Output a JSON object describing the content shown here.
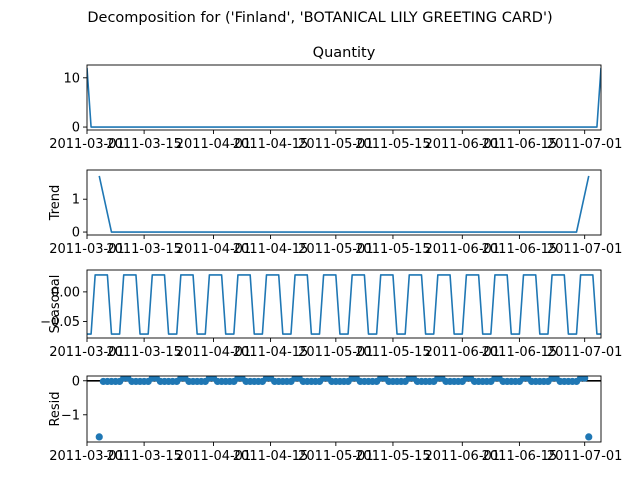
{
  "figure": {
    "suptitle": "Decomposition for ('Finland', 'BOTANICAL LILY GREETING CARD')"
  },
  "colors": {
    "series": "#1f77b4",
    "axis": "#000000"
  },
  "chart_data": [
    {
      "type": "line",
      "title": "Quantity",
      "ylabel": "",
      "ylim": [
        -0.6,
        12.6
      ],
      "yticks": [
        0,
        10
      ],
      "x_range": [
        "2011-03-01",
        "2011-07-05"
      ],
      "xticks": [
        "2011-03-01",
        "2011-03-15",
        "2011-04-01",
        "2011-04-15",
        "2011-05-01",
        "2011-05-15",
        "2011-06-01",
        "2011-06-15",
        "2011-07-01"
      ],
      "series": [
        {
          "points": [
            [
              "2011-03-01",
              12
            ],
            [
              "2011-03-02",
              0
            ],
            [
              "2011-07-04",
              0
            ],
            [
              "2011-07-05",
              12
            ]
          ]
        }
      ]
    },
    {
      "type": "line",
      "title": "",
      "ylabel": "Trend",
      "ylim": [
        -0.09,
        1.89
      ],
      "yticks": [
        0,
        1
      ],
      "x_range": [
        "2011-03-01",
        "2011-07-05"
      ],
      "xticks": [
        "2011-03-01",
        "2011-03-15",
        "2011-04-01",
        "2011-04-15",
        "2011-05-01",
        "2011-05-15",
        "2011-06-01",
        "2011-06-15",
        "2011-07-01"
      ],
      "series": [
        {
          "points": [
            [
              "2011-03-04",
              1.71
            ],
            [
              "2011-03-07",
              0
            ],
            [
              "2011-06-29",
              0
            ],
            [
              "2011-07-02",
              1.71
            ]
          ]
        }
      ]
    },
    {
      "type": "line",
      "title": "",
      "ylabel": "Seasonal",
      "ylim": [
        -0.078,
        0.037
      ],
      "yticks": [
        0.0,
        -0.05
      ],
      "ytick_labels": [
        "0.00",
        "−0.05"
      ],
      "x_range": [
        "2011-03-01",
        "2011-07-05"
      ],
      "xticks": [
        "2011-03-01",
        "2011-03-15",
        "2011-04-01",
        "2011-04-15",
        "2011-05-01",
        "2011-05-15",
        "2011-06-01",
        "2011-06-15",
        "2011-07-01"
      ],
      "period": 7,
      "high": 0.0286,
      "low": -0.0714,
      "series": [
        {
          "pattern": "weekly square wave"
        }
      ]
    },
    {
      "type": "scatter",
      "title": "",
      "ylabel": "Resid",
      "ylim": [
        -1.8,
        0.14
      ],
      "yticks": [
        0,
        -1
      ],
      "ytick_labels": [
        "0",
        "−1"
      ],
      "baseline": 0,
      "x_range": [
        "2011-03-01",
        "2011-07-05"
      ],
      "xticks": [
        "2011-03-01",
        "2011-03-15",
        "2011-04-01",
        "2011-04-15",
        "2011-05-01",
        "2011-05-15",
        "2011-06-01",
        "2011-06-15",
        "2011-07-01"
      ],
      "outliers": [
        [
          "2011-03-04",
          -1.65
        ],
        [
          "2011-07-02",
          -1.65
        ]
      ],
      "high": 0.08,
      "low": -0.02,
      "series": [
        {
          "pattern": "daily residuals"
        }
      ]
    }
  ]
}
